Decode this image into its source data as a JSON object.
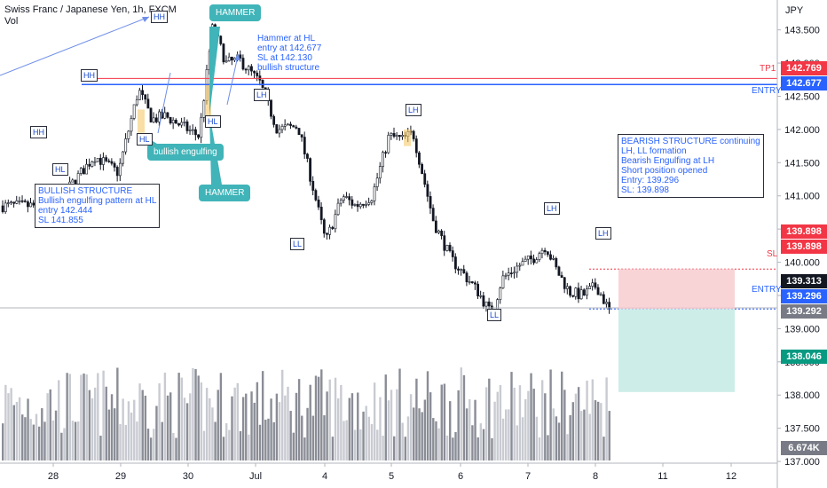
{
  "header": {
    "symbol": "Swiss Franc / Japanese Yen, 1h, FXCM",
    "indicator": "Vol"
  },
  "axis": {
    "currency": "JPY"
  },
  "colors": {
    "bull": "#ffffff",
    "bear": "#131722",
    "tp": "#f23645",
    "entry": "#2962ff",
    "sl": "#f23645",
    "teal": "#40b4b8"
  },
  "chart_data": {
    "type": "candlestick",
    "y_axis": {
      "min": 136.6,
      "max": 143.95,
      "ticks": [
        "143.500",
        "143.000",
        "142.500",
        "142.000",
        "141.500",
        "141.000",
        "140.500",
        "140.000",
        "139.500",
        "139.000",
        "138.500",
        "138.000",
        "137.500",
        "137.000"
      ]
    },
    "x_axis": {
      "ticks": [
        "28",
        "29",
        "30",
        "Jul",
        "4",
        "5",
        "6",
        "7",
        "8",
        "11",
        "12"
      ]
    },
    "path_days": [
      0,
      0.6,
      0.95,
      1.25,
      1.45,
      1.65,
      1.9,
      2.15,
      2.35,
      2.55,
      2.75,
      3.05,
      3.3,
      3.6,
      3.8,
      4.0,
      4.25,
      4.45,
      4.7,
      4.95,
      5.15,
      5.3,
      5.6,
      5.85,
      6.05,
      6.25,
      6.45,
      6.6,
      6.85,
      7.05,
      7.25,
      7.4,
      7.6,
      7.8,
      8.0,
      8.2
    ],
    "path_prices": [
      140.85,
      141.6,
      141.35,
      142.6,
      142.15,
      142.2,
      142.05,
      141.9,
      143.55,
      143.0,
      143.05,
      142.7,
      142.0,
      142.05,
      141.2,
      140.3,
      141.0,
      140.85,
      141.0,
      141.9,
      141.85,
      141.95,
      140.6,
      140.05,
      139.8,
      139.55,
      139.2,
      139.75,
      139.95,
      140.05,
      140.25,
      139.9,
      139.55,
      139.5,
      139.65,
      139.25
    ],
    "levels": [
      {
        "name": "TP1",
        "price": "142.769"
      },
      {
        "name": "ENTRY",
        "price": "142.677"
      },
      {
        "name": "SL",
        "price": "139.898"
      },
      {
        "name": "ENTRY",
        "price": "139.296"
      }
    ],
    "price_labels": [
      "142.769",
      "142.677",
      "139.898",
      "139.898",
      "139.313",
      "139.296",
      "139.292",
      "138.046",
      "6.674K"
    ],
    "position": {
      "entry": 139.296,
      "stop": 139.898,
      "target": 138.046
    },
    "structure_labels": [
      "HH",
      "HH",
      "HH",
      "HL",
      "HL",
      "HL",
      "LH",
      "LL",
      "LH",
      "LL",
      "LH",
      "LH"
    ]
  },
  "annotations": {
    "bull_structure": "BULLISH STRUCTURE\nBullish engulfing pattern at HL\nentry 142.444\nSL 141.855",
    "hammer_note": "Hammer at HL\nentry at 142.677\nSL at 142.130\nbullish structure",
    "bear_structure": "BEARISH STRUCTURE continuing\nLH, LL formation\nBearish Engulfing at LH\nShort position opened\nEntry: 139.296\nSL: 139.898",
    "callout_hammer_top": "HAMMER",
    "callout_hammer_bottom": "HAMMER",
    "callout_engulfing": "bullish engulfing"
  },
  "tags": {
    "hh1": "HH",
    "hh2": "HH",
    "hh3": "HH",
    "hl1": "HL",
    "hl2": "HL",
    "hl3": "HL",
    "lh1": "LH",
    "ll1": "LL",
    "lh2": "LH",
    "ll2": "LL",
    "lh3": "LH",
    "lh4": "LH"
  }
}
